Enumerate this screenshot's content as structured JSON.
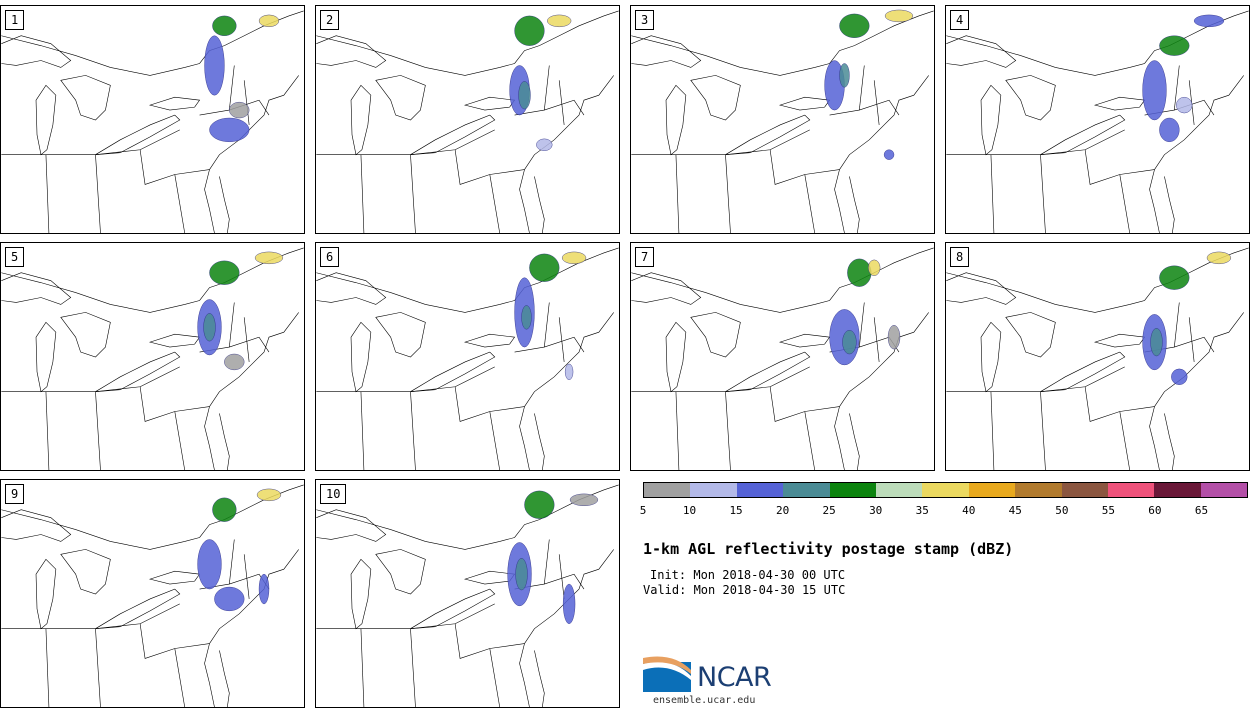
{
  "panels": [
    {
      "label": "1"
    },
    {
      "label": "2"
    },
    {
      "label": "3"
    },
    {
      "label": "4"
    },
    {
      "label": "5"
    },
    {
      "label": "6"
    },
    {
      "label": "7"
    },
    {
      "label": "8"
    },
    {
      "label": "9"
    },
    {
      "label": "10"
    }
  ],
  "colorbar": {
    "colors": [
      "#a0a0a0",
      "#b3b9e8",
      "#5562d6",
      "#4a8b95",
      "#0c840f",
      "#bcdcba",
      "#ebd960",
      "#e8a91e",
      "#b17a2d",
      "#8b5640",
      "#ef527b",
      "#6a1838",
      "#b34fa7"
    ],
    "ticks": [
      "5",
      "10",
      "15",
      "20",
      "25",
      "30",
      "35",
      "40",
      "45",
      "50",
      "55",
      "60",
      "65"
    ]
  },
  "title": "1-km AGL reflectivity postage stamp (dBZ)",
  "init": "Init: Mon 2018-04-30 00 UTC",
  "valid": "Valid: Mon 2018-04-30 15 UTC",
  "logo_text": "NCAR",
  "site": "ensemble.ucar.edu"
}
